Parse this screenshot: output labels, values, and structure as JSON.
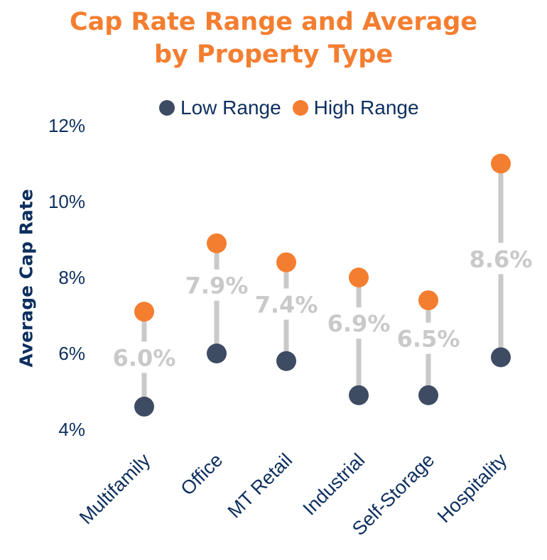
{
  "chart_data": {
    "type": "dumbbell",
    "title_lines": [
      "Cap Rate Range and Average",
      "by Property Type"
    ],
    "ylabel": "Average Cap Rate",
    "xlabel": "",
    "ylim": [
      4,
      12
    ],
    "yticks": [
      4,
      6,
      8,
      10,
      12
    ],
    "ytick_labels": [
      "4%",
      "6%",
      "8%",
      "10%",
      "12%"
    ],
    "grid": false,
    "legend_position": "top-center",
    "categories": [
      "Multifamily",
      "Office",
      "MT Retail",
      "Industrial",
      "Self-Storage",
      "Hospitality"
    ],
    "series": [
      {
        "name": "Low Range",
        "color": "#3d4b63",
        "values": [
          4.6,
          6.0,
          5.8,
          4.9,
          4.9,
          5.9
        ]
      },
      {
        "name": "High Range",
        "color": "#f47e30",
        "values": [
          7.1,
          8.9,
          8.4,
          8.0,
          7.4,
          11.0
        ]
      }
    ],
    "average_labels": [
      "6.0%",
      "7.9%",
      "7.4%",
      "6.9%",
      "6.5%",
      "8.6%"
    ],
    "average_label_values": [
      5.9,
      7.8,
      7.3,
      6.8,
      6.4,
      8.5
    ],
    "connector_color": "#c9c9c9",
    "label_color": "#c9c9c9",
    "axis_text_color": "#0d2f5e",
    "title_color": "#f47e30"
  }
}
